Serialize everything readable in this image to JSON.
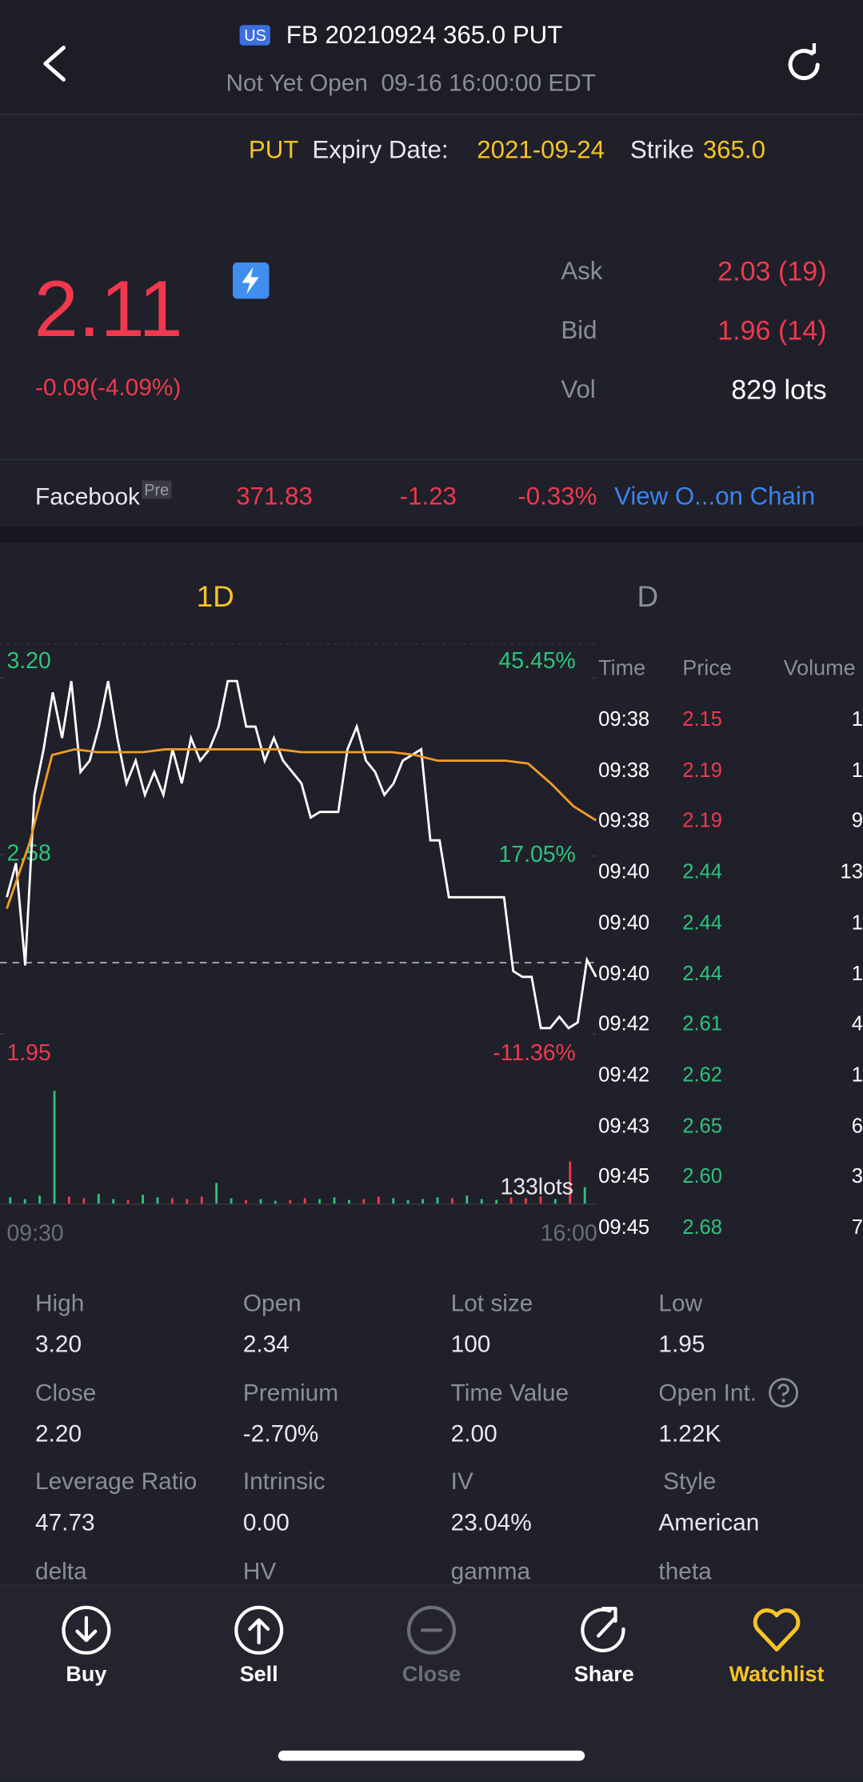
{
  "header": {
    "badge": "US",
    "title": "FB 20210924 365.0 PUT",
    "status": "Not Yet Open  09-16 16:00:00 EDT"
  },
  "info": {
    "type": "PUT",
    "expiry_label": "Expiry Date:",
    "expiry": "2021-09-24",
    "strike_label": "Strike",
    "strike": "365.0"
  },
  "quote": {
    "price": "2.11",
    "change": "-0.09(-4.09%)",
    "ask_label": "Ask",
    "ask": "2.03 (19)",
    "bid_label": "Bid",
    "bid": "1.96 (14)",
    "vol_label": "Vol",
    "vol": "829 lots"
  },
  "underlying": {
    "name": "Facebook",
    "tag": "Pre",
    "price": "371.83",
    "change": "-1.23",
    "pct": "-0.33%",
    "link": "View O...on Chain"
  },
  "tabs": [
    "1D",
    "D"
  ],
  "chart_data": {
    "type": "line",
    "ylim": [
      1.95,
      3.2
    ],
    "yticks": [
      {
        "value": 3.2,
        "label": "3.20"
      },
      2.58,
      1.95
    ],
    "y2lim": [
      -11.36,
      45.45
    ],
    "y2ticks": [
      {
        "value": 45.45,
        "label": "45.45%"
      },
      {
        "value": 17.05,
        "label": "17.05%"
      },
      {
        "value": -11.36,
        "label": "-11.36%"
      }
    ],
    "reference": 2.2,
    "x_labels": [
      "09:30",
      "16:00"
    ],
    "series": [
      {
        "color": "#ffffff",
        "values": [
          2.43,
          2.55,
          2.19,
          2.79,
          2.95,
          3.15,
          2.99,
          3.19,
          2.87,
          2.91,
          3.03,
          3.19,
          2.99,
          2.83,
          2.91,
          2.79,
          2.87,
          2.79,
          2.95,
          2.83,
          2.99,
          2.91,
          2.95,
          3.03,
          3.19,
          3.19,
          3.03,
          3.03,
          2.91,
          2.99,
          2.91,
          2.87,
          2.83,
          2.71,
          2.73,
          2.73,
          2.73,
          2.95,
          3.03,
          2.91,
          2.87,
          2.79,
          2.83,
          2.91,
          2.93,
          2.95,
          2.63,
          2.63,
          2.43,
          2.43,
          2.43,
          2.43,
          2.43,
          2.43,
          2.43,
          2.17,
          2.15,
          2.15,
          1.97,
          1.97,
          2.01,
          1.97,
          1.99,
          2.21,
          2.15
        ]
      },
      {
        "color": "#f39c26",
        "values": [
          2.39,
          2.62,
          2.93,
          2.95,
          2.94,
          2.94,
          2.94,
          2.95,
          2.95,
          2.95,
          2.95,
          2.95,
          2.95,
          2.94,
          2.94,
          2.94,
          2.94,
          2.94,
          2.93,
          2.91,
          2.91,
          2.91,
          2.91,
          2.9,
          2.83,
          2.75,
          2.7
        ]
      }
    ],
    "volume": {
      "label": "133lots",
      "lim": [
        0,
        140
      ],
      "values": [
        8,
        6,
        10,
        133,
        9,
        7,
        12,
        6,
        5,
        11,
        8,
        7,
        6,
        9,
        25,
        7,
        5,
        6,
        4,
        5,
        7,
        6,
        8,
        5,
        6,
        9,
        7,
        5,
        6,
        8,
        7,
        10,
        6,
        5,
        8,
        7,
        9,
        6,
        50,
        20
      ]
    }
  },
  "trades": {
    "header": [
      "Time",
      "Price",
      "Volume"
    ],
    "rows": [
      {
        "time": "09:38",
        "price": "2.15",
        "volume": "1",
        "color": "#f0384f"
      },
      {
        "time": "09:38",
        "price": "2.19",
        "volume": "1",
        "color": "#f0384f"
      },
      {
        "time": "09:38",
        "price": "2.19",
        "volume": "9",
        "color": "#f0384f"
      },
      {
        "time": "09:40",
        "price": "2.44",
        "volume": "13",
        "color": "#2ec37c"
      },
      {
        "time": "09:40",
        "price": "2.44",
        "volume": "1",
        "color": "#2ec37c"
      },
      {
        "time": "09:40",
        "price": "2.44",
        "volume": "1",
        "color": "#2ec37c"
      },
      {
        "time": "09:42",
        "price": "2.61",
        "volume": "4",
        "color": "#2ec37c"
      },
      {
        "time": "09:42",
        "price": "2.62",
        "volume": "1",
        "color": "#2ec37c"
      },
      {
        "time": "09:43",
        "price": "2.65",
        "volume": "6",
        "color": "#2ec37c"
      },
      {
        "time": "09:45",
        "price": "2.60",
        "volume": "3",
        "color": "#2ec37c"
      },
      {
        "time": "09:45",
        "price": "2.68",
        "volume": "7",
        "color": "#2ec37c"
      }
    ]
  },
  "stats": [
    {
      "label": "High",
      "value": "3.20"
    },
    {
      "label": "Open",
      "value": "2.34"
    },
    {
      "label": "Lot size",
      "value": "100"
    },
    {
      "label": "Low",
      "value": "1.95"
    },
    {
      "label": "Close",
      "value": "2.20"
    },
    {
      "label": "Premium",
      "value": "-2.70%"
    },
    {
      "label": "Time Value",
      "value": "2.00"
    },
    {
      "label": "Open Int.",
      "value": "1.22K"
    },
    {
      "label": "Leverage Ratio",
      "value": "47.73"
    },
    {
      "label": "Intrinsic",
      "value": "0.00"
    },
    {
      "label": "IV",
      "value": "23.04%"
    },
    {
      "label": "Style",
      "value": "American"
    },
    {
      "label": "delta"
    },
    {
      "label": "HV"
    },
    {
      "label": "gamma"
    },
    {
      "label": "theta"
    }
  ],
  "nav": [
    "Buy",
    "Sell",
    "Close",
    "Share",
    "Watchlist"
  ]
}
